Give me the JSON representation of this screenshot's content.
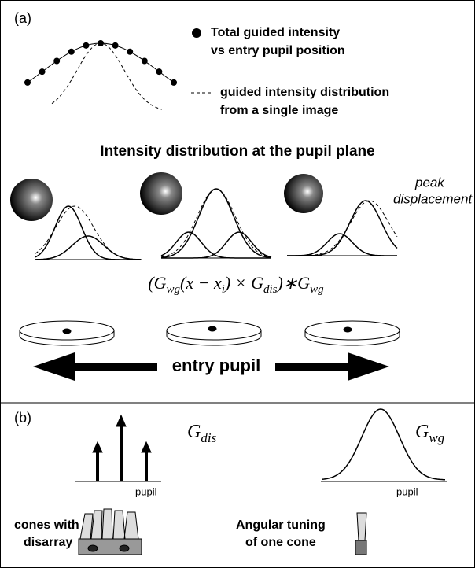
{
  "panel_a": {
    "label": "(a)",
    "legend": [
      {
        "lines": [
          "Total guided intensity",
          "vs entry pupil position"
        ]
      },
      {
        "lines": [
          "guided intensity distribution",
          "from a single image"
        ]
      }
    ],
    "title": "Intensity distribution at the pupil plane",
    "annotation": [
      "peak",
      "displacement"
    ],
    "formula": [
      "(G",
      "wg",
      "(x − x",
      "i",
      ") × G",
      "dis",
      ")∗G",
      "wg"
    ],
    "axis_label": "entry pupil"
  },
  "panel_b": {
    "label": "(b)",
    "left_plot": {
      "symbol": [
        "G",
        "dis"
      ],
      "axis_label": "pupil"
    },
    "right_plot": {
      "symbol": [
        "G",
        "wg"
      ],
      "axis_label": "pupil"
    },
    "left_caption": [
      "cones with",
      "disarray"
    ],
    "right_caption": [
      "Angular tuning",
      "of one cone"
    ]
  }
}
